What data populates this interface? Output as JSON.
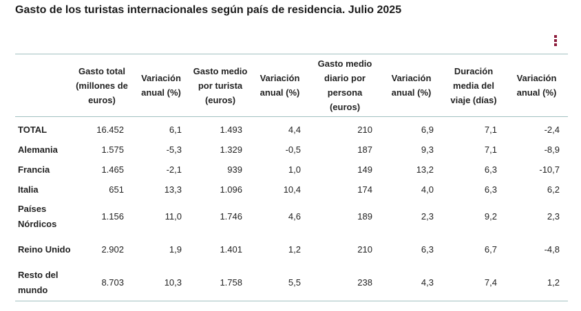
{
  "title": "Gasto de los turistas internacionales según país de residencia. Julio 2025",
  "menu_icon": "vertical-dots-icon",
  "accent_color": "#8b1a3a",
  "rule_color": "#9fbfbf",
  "table": {
    "headers": [
      "",
      "Gasto total (millones de euros)",
      "Variación anual (%)",
      "Gasto medio por turista (euros)",
      "Variación anual (%)",
      "Gasto medio diario por persona (euros)",
      "Variación anual (%)",
      "Duración media del viaje (días)",
      "Variación anual (%)"
    ],
    "rows": [
      {
        "label": "TOTAL",
        "values": [
          "16.452",
          "6,1",
          "1.493",
          "4,4",
          "210",
          "6,9",
          "7,1",
          "-2,4"
        ]
      },
      {
        "label": "Alemania",
        "values": [
          "1.575",
          "-5,3",
          "1.329",
          "-0,5",
          "187",
          "9,3",
          "7,1",
          "-8,9"
        ]
      },
      {
        "label": "Francia",
        "values": [
          "1.465",
          "-2,1",
          "939",
          "1,0",
          "149",
          "13,2",
          "6,3",
          "-10,7"
        ]
      },
      {
        "label": "Italia",
        "values": [
          "651",
          "13,3",
          "1.096",
          "10,4",
          "174",
          "4,0",
          "6,3",
          "6,2"
        ]
      },
      {
        "label": "Países Nórdicos",
        "values": [
          "1.156",
          "11,0",
          "1.746",
          "4,6",
          "189",
          "2,3",
          "9,2",
          "2,3"
        ]
      },
      {
        "label": "Reino Unido",
        "values": [
          "2.902",
          "1,9",
          "1.401",
          "1,2",
          "210",
          "6,3",
          "6,7",
          "-4,8"
        ]
      },
      {
        "label": "Resto del mundo",
        "values": [
          "8.703",
          "10,3",
          "1.758",
          "5,5",
          "238",
          "4,3",
          "7,4",
          "1,2"
        ]
      }
    ]
  }
}
